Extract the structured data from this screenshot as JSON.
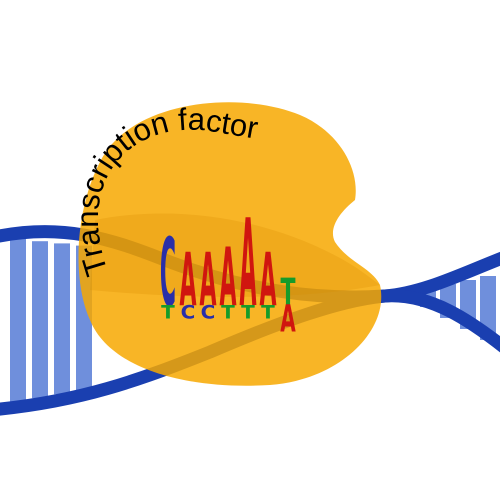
{
  "diagram": {
    "protein_label": "Transcription factor",
    "motif": {
      "positions": [
        {
          "primary": "C",
          "secondary": [
            "T"
          ]
        },
        {
          "primary": "A",
          "secondary": [
            "C"
          ]
        },
        {
          "primary": "A",
          "secondary": [
            "C"
          ]
        },
        {
          "primary": "A",
          "secondary": [
            "T"
          ]
        },
        {
          "primary": "A",
          "secondary": [
            "T"
          ]
        },
        {
          "primary": "A",
          "secondary": [
            "T"
          ]
        },
        {
          "primary": "T",
          "secondary": [
            "A"
          ]
        }
      ]
    },
    "colors": {
      "protein": "#f7a800",
      "dna_backbone": "#1a3fb0",
      "dna_rungs": "#6f8fdc",
      "A": "#d0160f",
      "C": "#2a2fa8",
      "G": "#f2a400",
      "T": "#169b2a"
    }
  }
}
